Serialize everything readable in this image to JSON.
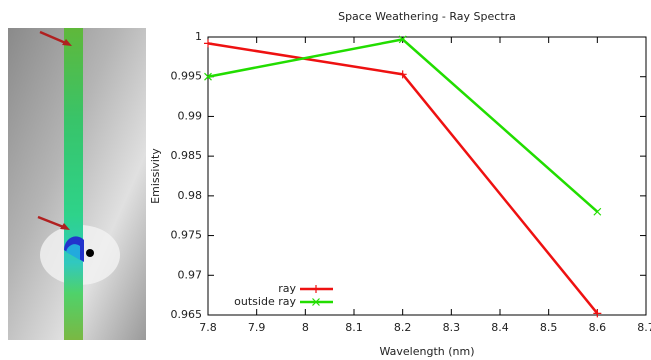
{
  "chart_data": {
    "type": "line",
    "title": "Space Weathering - Ray Spectra",
    "x_label": "Wavelength (nm)",
    "y_label": "Emissivity",
    "x": [
      7.8,
      8.2,
      8.6
    ],
    "series": [
      {
        "name": "ray",
        "color": "#ee1111",
        "marker": "+",
        "values": [
          0.9992,
          0.9953,
          0.9652
        ]
      },
      {
        "name": "outside ray",
        "color": "#22dd00",
        "marker": "x",
        "values": [
          0.995,
          0.9997,
          0.978
        ]
      }
    ],
    "xlim": [
      7.8,
      8.7
    ],
    "xticks": [
      7.8,
      7.9,
      8,
      8.1,
      8.2,
      8.3,
      8.4,
      8.5,
      8.6,
      8.7
    ],
    "ylim": [
      0.965,
      1
    ],
    "yticks": [
      0.965,
      0.97,
      0.975,
      0.98,
      0.985,
      0.99,
      0.995,
      1
    ],
    "grid": false,
    "legend": "lower left"
  }
}
